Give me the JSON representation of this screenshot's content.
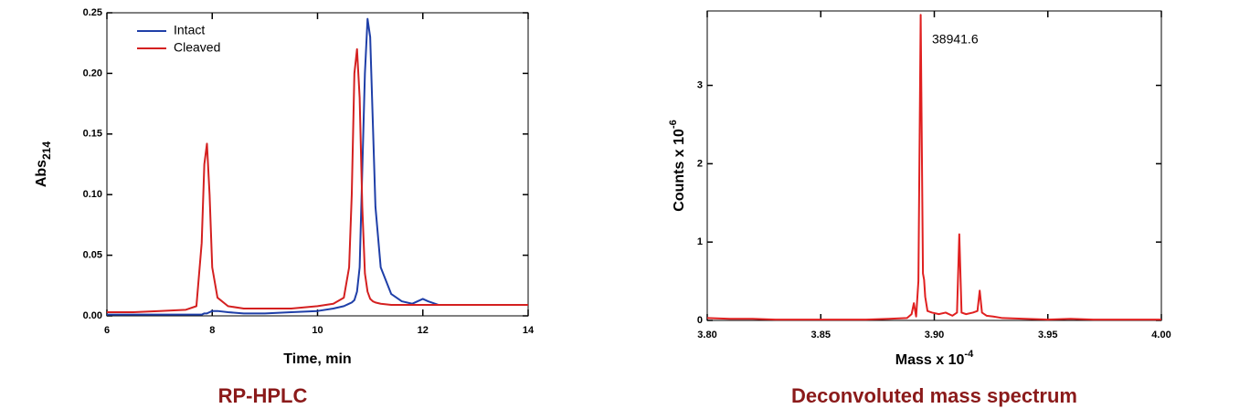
{
  "chart_data": [
    {
      "type": "line",
      "title": "RP-HPLC",
      "x_label": "Time, min",
      "y_label": "Abs",
      "y_label_subscript": "214",
      "legend": "upper left",
      "xlim": [
        6,
        14
      ],
      "xticks": [
        6,
        8,
        10,
        12,
        14
      ],
      "ylim": [
        0,
        0.25
      ],
      "yticks": [
        {
          "value": 0,
          "label": "0.00"
        },
        0.05,
        {
          "value": 0.1,
          "label": "0.10"
        },
        0.15,
        {
          "value": 0.2,
          "label": "0.20"
        },
        0.25
      ],
      "x": [
        6,
        6.5,
        7,
        7.5,
        7.7,
        7.8,
        7.85,
        7.9,
        7.95,
        8.0,
        8.1,
        8.3,
        8.6,
        9,
        9.5,
        10,
        10.3,
        10.5,
        10.6,
        10.65,
        10.7,
        10.75,
        10.8,
        10.85,
        10.9,
        10.95,
        11.0,
        11.05,
        11.1,
        11.2,
        11.4,
        11.6,
        11.8,
        12.0,
        12.1,
        12.3,
        12.6,
        13,
        13.5,
        14
      ],
      "series": [
        {
          "name": "Intact",
          "color": "#1f3fa8",
          "values": [
            0.001,
            0.001,
            0.001,
            0.001,
            0.001,
            0.001,
            0.002,
            0.002,
            0.003,
            0.004,
            0.004,
            0.003,
            0.002,
            0.002,
            0.003,
            0.004,
            0.006,
            0.008,
            0.01,
            0.011,
            0.013,
            0.02,
            0.04,
            0.12,
            0.2,
            0.245,
            0.23,
            0.16,
            0.09,
            0.04,
            0.018,
            0.012,
            0.01,
            0.014,
            0.012,
            0.009,
            0.009,
            0.009,
            0.009,
            0.009
          ]
        },
        {
          "name": "Cleaved",
          "color": "#d42020",
          "values": [
            0.003,
            0.003,
            0.004,
            0.005,
            0.008,
            0.06,
            0.125,
            0.142,
            0.1,
            0.04,
            0.015,
            0.008,
            0.006,
            0.006,
            0.006,
            0.008,
            0.01,
            0.015,
            0.04,
            0.1,
            0.2,
            0.22,
            0.18,
            0.09,
            0.035,
            0.02,
            0.014,
            0.012,
            0.011,
            0.01,
            0.009,
            0.009,
            0.009,
            0.009,
            0.009,
            0.009,
            0.009,
            0.009,
            0.009,
            0.009
          ]
        }
      ]
    },
    {
      "type": "line",
      "title": "Deconvoluted mass spectrum",
      "x_label": "Mass x 10",
      "x_label_superscript": "-4",
      "y_label": "Counts x 10",
      "y_label_superscript": "-6",
      "annotation": "38941.6",
      "xlim": [
        3.8,
        4.0
      ],
      "xticks": [
        {
          "value": 3.8,
          "label": "3.80"
        },
        3.85,
        {
          "value": 3.9,
          "label": "3.90"
        },
        3.95,
        {
          "value": 4,
          "label": "4.00"
        }
      ],
      "ylim": [
        0,
        3.95
      ],
      "yticks": [
        0,
        1,
        2,
        3
      ],
      "color": "#e02020",
      "x": [
        3.8,
        3.81,
        3.82,
        3.83,
        3.84,
        3.85,
        3.86,
        3.87,
        3.88,
        3.888,
        3.89,
        3.891,
        3.892,
        3.893,
        3.894,
        3.895,
        3.8955,
        3.896,
        3.897,
        3.899,
        3.902,
        3.905,
        3.908,
        3.91,
        3.911,
        3.912,
        3.914,
        3.917,
        3.919,
        3.92,
        3.921,
        3.923,
        3.926,
        3.93,
        3.94,
        3.95,
        3.96,
        3.97,
        3.98,
        3.99,
        4.0
      ],
      "values": [
        0.03,
        0.02,
        0.02,
        0.01,
        0.01,
        0.01,
        0.01,
        0.01,
        0.02,
        0.03,
        0.08,
        0.22,
        0.05,
        0.5,
        3.9,
        0.6,
        0.52,
        0.3,
        0.12,
        0.1,
        0.08,
        0.1,
        0.06,
        0.1,
        1.1,
        0.1,
        0.08,
        0.1,
        0.12,
        0.38,
        0.1,
        0.06,
        0.05,
        0.03,
        0.02,
        0.01,
        0.02,
        0.01,
        0.01,
        0.01,
        0.01
      ]
    }
  ]
}
